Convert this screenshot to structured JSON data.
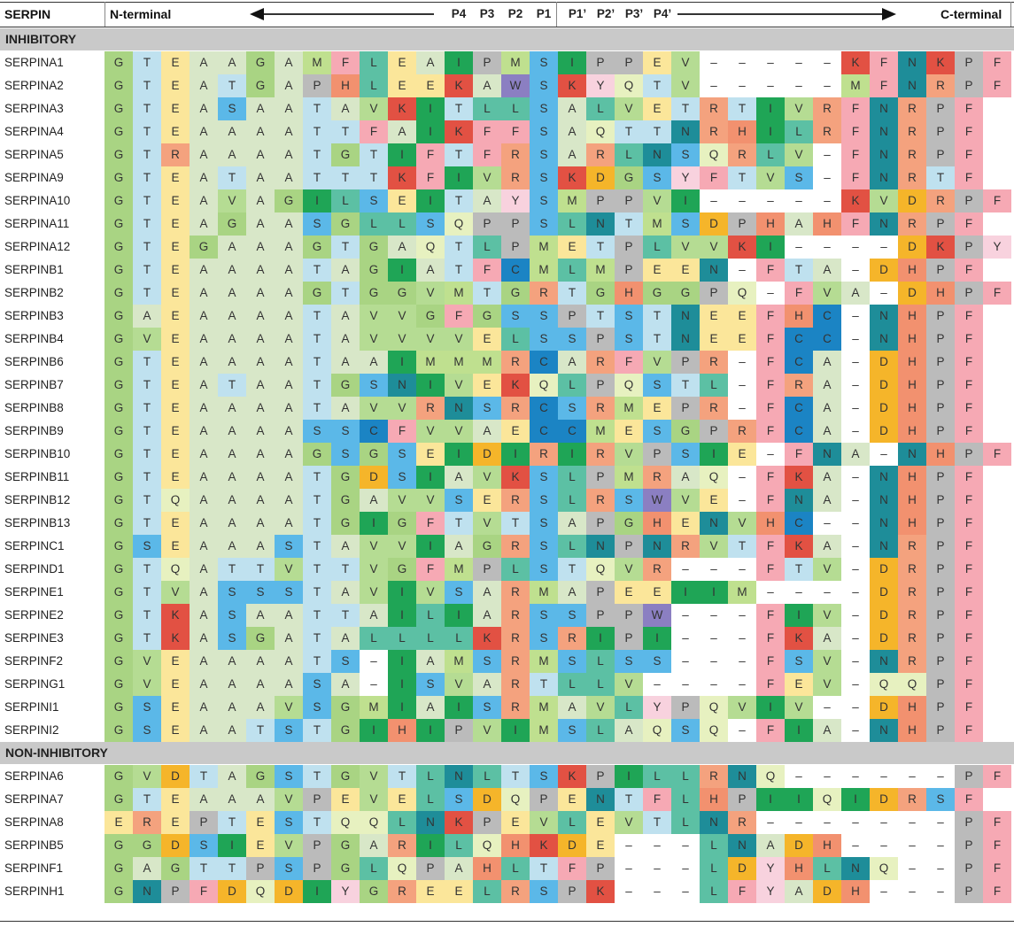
{
  "header": {
    "serpin": "SERPIN",
    "n_terminal": "N-terminal",
    "c_terminal": "C-terminal",
    "positions": [
      "P4",
      "P3",
      "P2",
      "P1",
      "P1’",
      "P2’",
      "P3’",
      "P4’"
    ]
  },
  "sections": [
    {
      "label": "INHIBITORY",
      "rows": [
        {
          "name": "SERPINA1",
          "seq": "GTEAAGAMFLEAIPMSIPPEV-----KFNKPF"
        },
        {
          "name": "SERPINA2",
          "seq": "GTEATGAPHLEEKAWSKYQTV-----MFNRPF"
        },
        {
          "name": "SERPINA3",
          "seq": "GTEASAATAVKITLLSALVETRTIVRFNRPF"
        },
        {
          "name": "SERPINA4",
          "seq": "GTEAAAATTFAIKFFSAQTTNRHILRFNRPF"
        },
        {
          "name": "SERPINA5",
          "seq": "GTRAAAATGTIFTFRSARLNSQRLV-FNRPF"
        },
        {
          "name": "SERPINA9",
          "seq": "GTEATAATTTKFIVRSKDGSYFTVS-FNRTF"
        },
        {
          "name": "SERPINA10",
          "seq": "GTEAVAGILSEITAYSMPPVI-----KVDRPF"
        },
        {
          "name": "SERPINA11",
          "seq": "GTEAGAASGLLSQPPSLNTMSDPHAHFNRPF"
        },
        {
          "name": "SERPINA12",
          "seq": "GTEGAAAGTGAQTLPMETPLVVKI----DKPY"
        },
        {
          "name": "SERPINB1",
          "seq": "GTEAAAATAGIATFCMLMPEEN-FTA-DHPF"
        },
        {
          "name": "SERPINB2",
          "seq": "GTEAAAAGTGGVMTGRTGHGGPQ-FVA-DHPF"
        },
        {
          "name": "SERPINB3",
          "seq": "GAEAAAATAVVGFGSSPTSTNEEFHC-NHPF"
        },
        {
          "name": "SERPINB4",
          "seq": "GVEAAAATAVVVVELSSPSTNEEFCC-NHPF"
        },
        {
          "name": "SERPINB6",
          "seq": "GTEAAAATAAIMMMRCARFVPR-FCA-DHPF"
        },
        {
          "name": "SERPINB7",
          "seq": "GTEATAATGSNIVEKQLPQSTL-FRA-DHPF"
        },
        {
          "name": "SERPINB8",
          "seq": "GTEAAAATAVVRNSRCSRMEPR-FCA-DHPF"
        },
        {
          "name": "SERPINB9",
          "seq": "GTEAAAASSCFVVAECCMESGPRFCA-DHPF"
        },
        {
          "name": "SERPINB10",
          "seq": "GTEAAAAGSGSEIDIRIRVPSIE-FNA-NHPF"
        },
        {
          "name": "SERPINB11",
          "seq": "GTEAAAATGDSIAVKSLPMRAQ-FKA-NHPF"
        },
        {
          "name": "SERPINB12",
          "seq": "GTQAAAATGAVVSERSLRSWVE-FNA-NHPF"
        },
        {
          "name": "SERPINB13",
          "seq": "GTEAAAATGIGFTVTSAPGHENVHC--NHPF"
        },
        {
          "name": "SERPINC1",
          "seq": "GSEAAASTAVVIAGRSLNPNRVTFKA-NRPF"
        },
        {
          "name": "SERPIND1",
          "seq": "GTQATTVTTVGFMPLSTQVR---FTV-DRPF"
        },
        {
          "name": "SERPINE1",
          "seq": "GTVASSSTAVIVSARMAPEEIIM----DRPF"
        },
        {
          "name": "SERPINE2",
          "seq": "GTKASAATTAILIARSSPPW---FIV-DRPF"
        },
        {
          "name": "SERPINE3",
          "seq": "GTKASGATALLLLKRSRIPI---FKA-DRPF"
        },
        {
          "name": "SERPINF2",
          "seq": "GVEAAAATS-IAMSRMSLSS---FSV-NRPF"
        },
        {
          "name": "SERPING1",
          "seq": "GVEAAAASA-ISVARTLLV----FEV-QQPF"
        },
        {
          "name": "SERPINI1",
          "seq": "GSEAAAVSGMIAISRMAVLYPQVIV--DHPF"
        },
        {
          "name": "SERPINI2",
          "seq": "GSEAATSTGIHIPVIMSLAQSQ-FIA-NHPF"
        }
      ]
    },
    {
      "label": "NON-INHIBITORY",
      "rows": [
        {
          "name": "SERPINA6",
          "seq": "GVDTAGSTGVTLNLTSKPILLRNQ------PF"
        },
        {
          "name": "SERPINA7",
          "seq": "GTEAAAVPEVELSDQPENTFLHPIIQIDRSF"
        },
        {
          "name": "SERPINA8",
          "seq": "EREPTESTQQLNKPEVLEVTLNR-------PF"
        },
        {
          "name": "SERPINB5",
          "seq": "GGDSIEVPGARILQHKDE---LNADH----PF"
        },
        {
          "name": "SERPINF1",
          "seq": "GAGTTPSPGLQPAHLTFP---LDYHLNQ--PF"
        },
        {
          "name": "SERPINH1",
          "seq": "GNPFDQDIYGREELRSPK---LFYADH---PF"
        }
      ]
    }
  ],
  "colors": {
    "A": "#d8e7c8",
    "C": "#1b84c4",
    "D": "#f5b52a",
    "E": "#fbe69a",
    "F": "#f6a9b4",
    "G": "#a9d483",
    "H": "#f2916f",
    "I": "#1fa556",
    "K": "#e25143",
    "L": "#5cc0a4",
    "M": "#bfe08f",
    "N": "#1e8d99",
    "P": "#bbbbbb",
    "Q": "#e7f1c0",
    "R": "#f4a27e",
    "S": "#5bb8e8",
    "T": "#bfe1ef",
    "V": "#b5dc93",
    "W": "#8b7fc2",
    "Y": "#f8d2de",
    "-": "#ffffff"
  }
}
